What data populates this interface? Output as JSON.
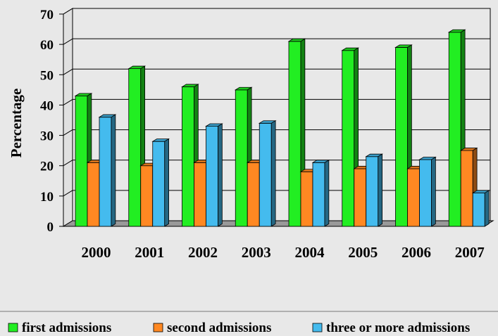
{
  "chart_data": {
    "type": "bar",
    "categories": [
      "2000",
      "2001",
      "2002",
      "2003",
      "2004",
      "2005",
      "2006",
      "2007"
    ],
    "series": [
      {
        "name": "first admissions",
        "color": "#22ee22",
        "values": [
          43,
          52,
          46,
          45,
          61,
          58,
          59,
          64
        ]
      },
      {
        "name": "second admissions",
        "color": "#ff8822",
        "values": [
          21,
          20,
          21,
          21,
          18,
          19,
          19,
          25
        ]
      },
      {
        "name": "three or more admissions",
        "color": "#44bbee",
        "values": [
          36,
          28,
          33,
          34,
          21,
          23,
          22,
          11
        ]
      }
    ],
    "xlabel": "",
    "ylabel": "Percentage",
    "ylim": [
      0,
      70
    ],
    "yticks": [
      0,
      10,
      20,
      30,
      40,
      50,
      60,
      70
    ],
    "grid": true,
    "legend_position": "bottom",
    "three_d": true
  }
}
